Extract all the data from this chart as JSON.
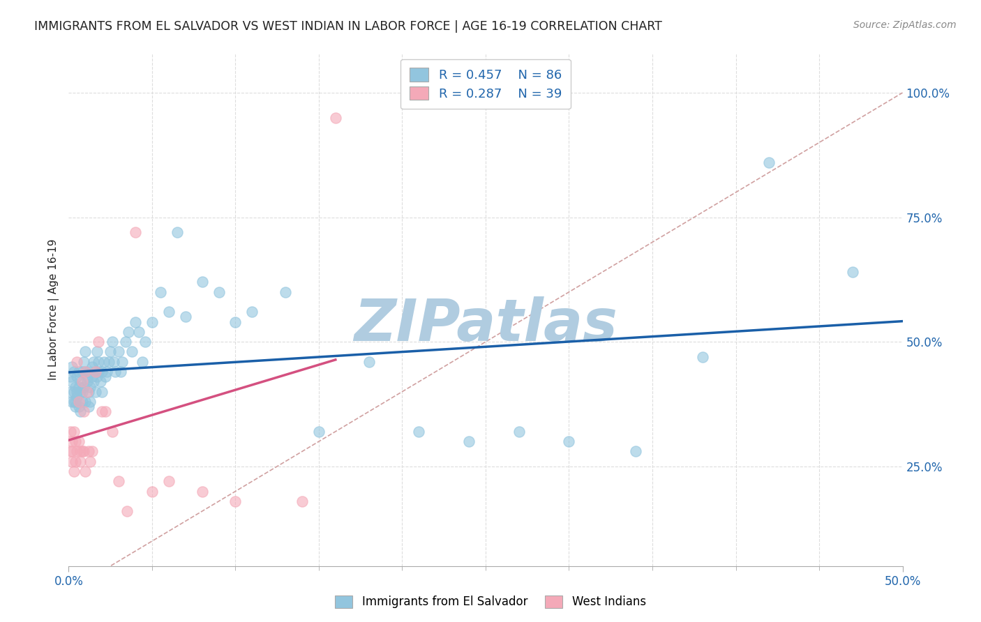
{
  "title": "IMMIGRANTS FROM EL SALVADOR VS WEST INDIAN IN LABOR FORCE | AGE 16-19 CORRELATION CHART",
  "source": "Source: ZipAtlas.com",
  "ylabel": "In Labor Force | Age 16-19",
  "xlim": [
    0.0,
    0.5
  ],
  "ylim": [
    0.05,
    1.08
  ],
  "xticks_labeled": [
    0.0,
    0.5
  ],
  "xtick_minor": [
    0.05,
    0.1,
    0.15,
    0.2,
    0.25,
    0.3,
    0.35,
    0.4,
    0.45
  ],
  "xtick_labels_labeled": [
    "0.0%",
    "50.0%"
  ],
  "yticks": [
    0.25,
    0.5,
    0.75,
    1.0
  ],
  "ytick_labels": [
    "25.0%",
    "50.0%",
    "75.0%",
    "100.0%"
  ],
  "legend_label_blue": "Immigrants from El Salvador",
  "legend_label_pink": "West Indians",
  "R_blue": "0.457",
  "N_blue": "86",
  "R_pink": "0.287",
  "N_pink": "39",
  "blue_scatter_color": "#92c5de",
  "pink_scatter_color": "#f4a9b8",
  "blue_line_color": "#1a5fa8",
  "pink_line_color": "#d45080",
  "ref_line_color": "#d0a0a0",
  "grid_color": "#dddddd",
  "watermark": "ZIPatlas",
  "watermark_color": "#b0cce0",
  "legend_text_color": "#2166ac",
  "title_color": "#222222",
  "source_color": "#888888",
  "tick_color": "#2166ac",
  "ylabel_color": "#222222",
  "blue_scatter_x": [
    0.001,
    0.001,
    0.002,
    0.002,
    0.002,
    0.003,
    0.003,
    0.003,
    0.004,
    0.004,
    0.004,
    0.005,
    0.005,
    0.005,
    0.006,
    0.006,
    0.006,
    0.007,
    0.007,
    0.007,
    0.008,
    0.008,
    0.008,
    0.009,
    0.009,
    0.01,
    0.01,
    0.01,
    0.011,
    0.011,
    0.012,
    0.012,
    0.012,
    0.013,
    0.013,
    0.014,
    0.014,
    0.015,
    0.015,
    0.016,
    0.016,
    0.017,
    0.017,
    0.018,
    0.018,
    0.019,
    0.02,
    0.02,
    0.021,
    0.022,
    0.023,
    0.024,
    0.025,
    0.026,
    0.027,
    0.028,
    0.03,
    0.031,
    0.032,
    0.034,
    0.036,
    0.038,
    0.04,
    0.042,
    0.044,
    0.046,
    0.05,
    0.055,
    0.06,
    0.065,
    0.07,
    0.08,
    0.09,
    0.1,
    0.11,
    0.13,
    0.15,
    0.18,
    0.21,
    0.24,
    0.27,
    0.3,
    0.34,
    0.38,
    0.42,
    0.47
  ],
  "blue_scatter_y": [
    0.4,
    0.43,
    0.38,
    0.42,
    0.45,
    0.38,
    0.4,
    0.44,
    0.37,
    0.41,
    0.38,
    0.43,
    0.4,
    0.39,
    0.44,
    0.37,
    0.41,
    0.36,
    0.42,
    0.4,
    0.38,
    0.44,
    0.4,
    0.46,
    0.41,
    0.44,
    0.48,
    0.38,
    0.43,
    0.42,
    0.4,
    0.37,
    0.44,
    0.38,
    0.41,
    0.45,
    0.43,
    0.46,
    0.42,
    0.4,
    0.44,
    0.43,
    0.48,
    0.44,
    0.46,
    0.42,
    0.44,
    0.4,
    0.46,
    0.43,
    0.44,
    0.46,
    0.48,
    0.5,
    0.46,
    0.44,
    0.48,
    0.44,
    0.46,
    0.5,
    0.52,
    0.48,
    0.54,
    0.52,
    0.46,
    0.5,
    0.54,
    0.6,
    0.56,
    0.72,
    0.55,
    0.62,
    0.6,
    0.54,
    0.56,
    0.6,
    0.32,
    0.46,
    0.32,
    0.3,
    0.32,
    0.3,
    0.28,
    0.47,
    0.86,
    0.64
  ],
  "pink_scatter_x": [
    0.001,
    0.001,
    0.002,
    0.002,
    0.002,
    0.003,
    0.003,
    0.004,
    0.004,
    0.005,
    0.005,
    0.006,
    0.006,
    0.007,
    0.007,
    0.008,
    0.008,
    0.009,
    0.009,
    0.01,
    0.01,
    0.011,
    0.012,
    0.013,
    0.014,
    0.016,
    0.018,
    0.02,
    0.022,
    0.026,
    0.03,
    0.035,
    0.04,
    0.05,
    0.06,
    0.08,
    0.1,
    0.14,
    0.16
  ],
  "pink_scatter_y": [
    0.28,
    0.32,
    0.3,
    0.26,
    0.28,
    0.24,
    0.32,
    0.3,
    0.26,
    0.46,
    0.28,
    0.3,
    0.38,
    0.26,
    0.28,
    0.42,
    0.28,
    0.36,
    0.28,
    0.24,
    0.44,
    0.4,
    0.28,
    0.26,
    0.28,
    0.44,
    0.5,
    0.36,
    0.36,
    0.32,
    0.22,
    0.16,
    0.72,
    0.2,
    0.22,
    0.2,
    0.18,
    0.18,
    0.95
  ]
}
